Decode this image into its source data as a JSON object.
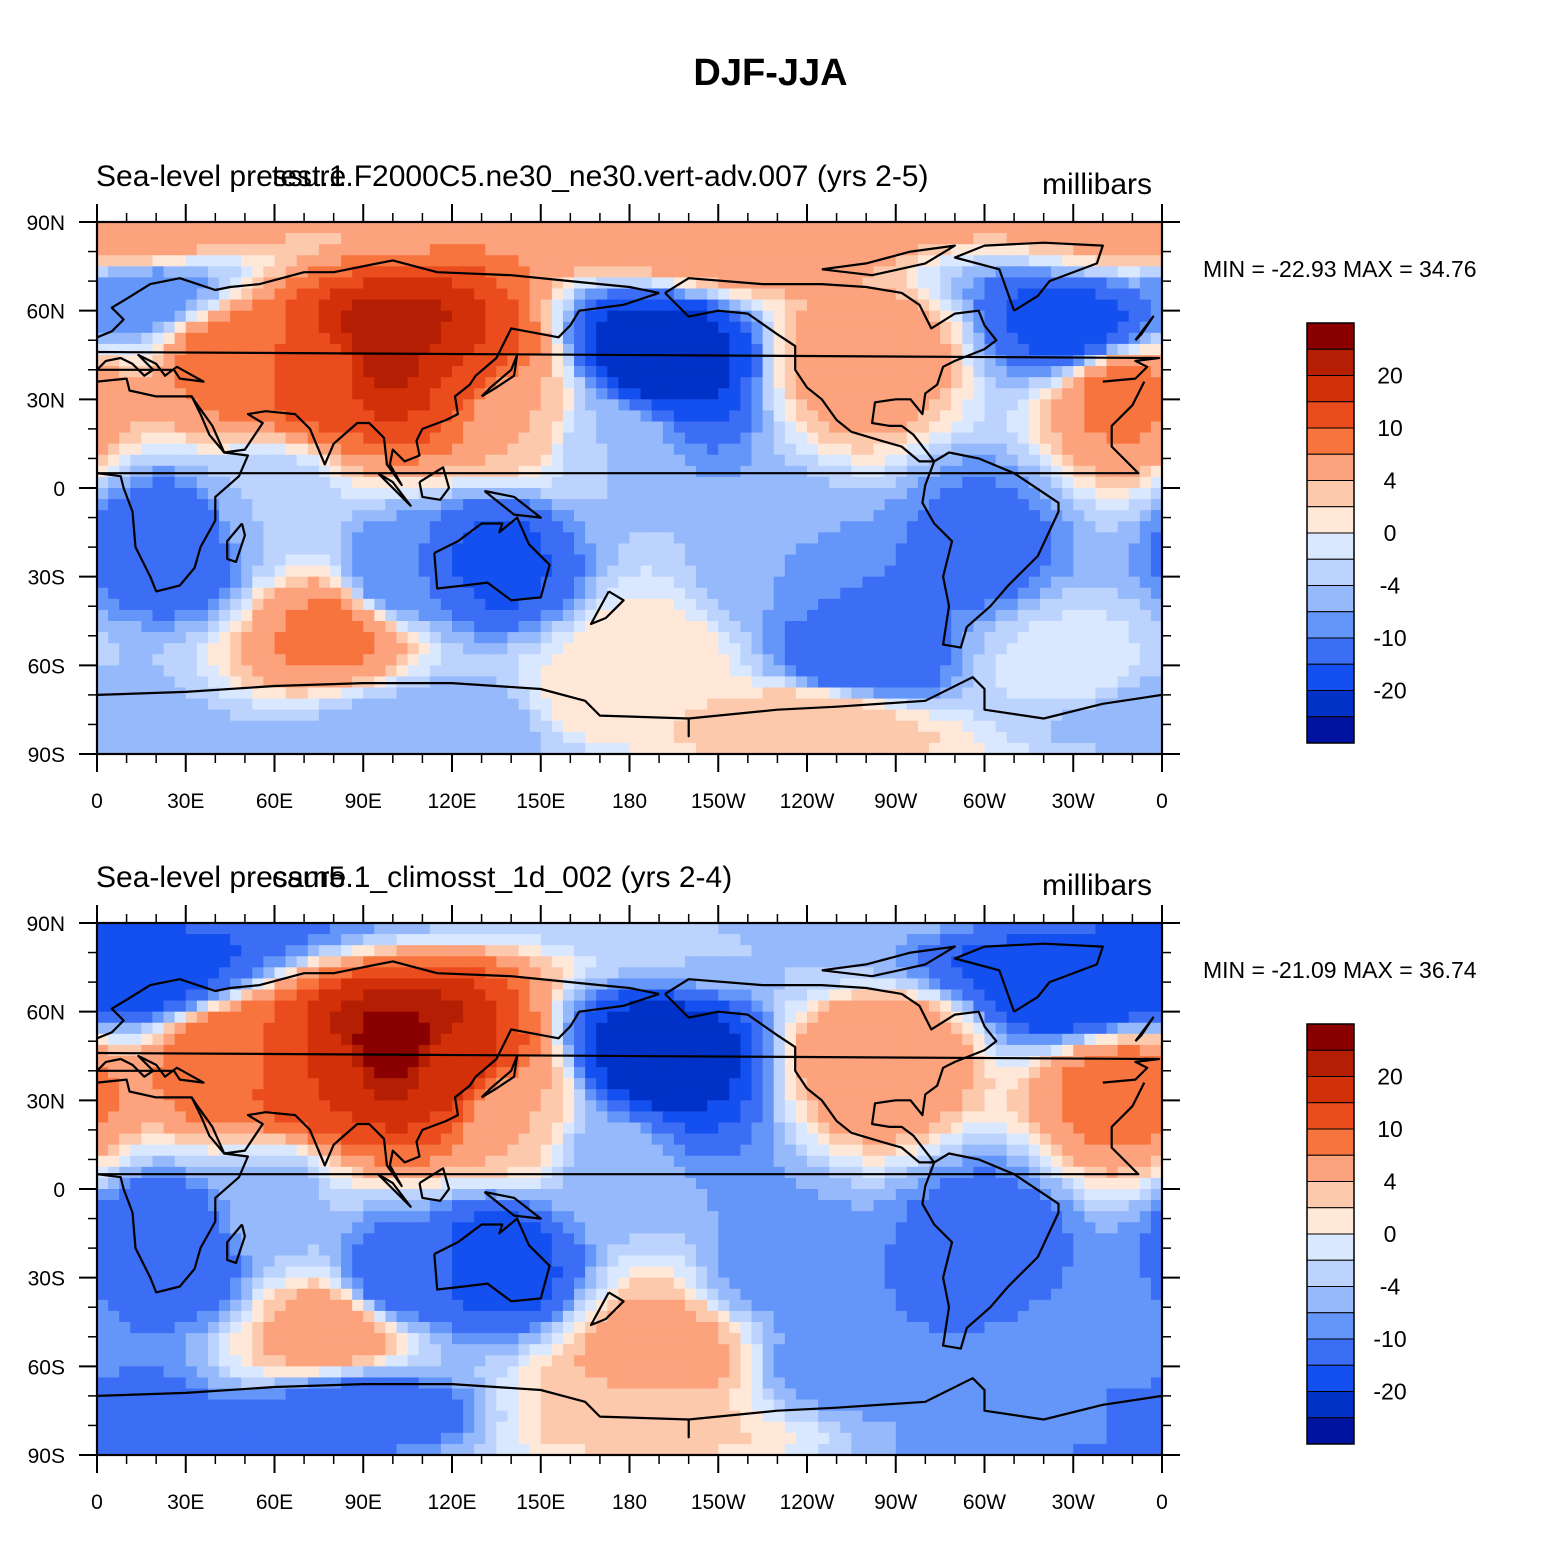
{
  "title": "DJF-JJA",
  "colors": {
    "levels": [
      "#00007d",
      "#0012a0",
      "#0032c8",
      "#1450f0",
      "#3c6ef5",
      "#6496fa",
      "#96b9fc",
      "#bcd3fd",
      "#d9e8ff",
      "#ffe8d8",
      "#fdc9ad",
      "#fca37d",
      "#f8743e",
      "#ea4c1e",
      "#d23008",
      "#b41e02",
      "#8a0000"
    ],
    "coast": "#000000"
  },
  "colorbar": {
    "labels": [
      "20",
      "10",
      "4",
      "0",
      "-4",
      "-10",
      "-20"
    ]
  },
  "axes": {
    "lat_labels": [
      "90N",
      "60N",
      "30N",
      "0",
      "30S",
      "60S",
      "90S"
    ],
    "lon_labels": [
      "0",
      "30E",
      "60E",
      "90E",
      "120E",
      "150E",
      "180",
      "150W",
      "120W",
      "90W",
      "60W",
      "30W",
      "0"
    ]
  },
  "panels": [
    {
      "title_left": "Sea-level pressure",
      "title_center": "test.1.F2000C5.ne30_ne30.vert-adv.007 (yrs 2-5)",
      "units": "millibars",
      "min_max": "MIN = -22.93 MAX =  34.76",
      "field": [
        {
          "lon": 15,
          "lat": 65,
          "v": -6
        },
        {
          "lon": 45,
          "lat": 45,
          "v": 12
        },
        {
          "lon": 75,
          "lat": 40,
          "v": 18
        },
        {
          "lon": 100,
          "lat": 48,
          "v": 30
        },
        {
          "lon": 120,
          "lat": 40,
          "v": 20
        },
        {
          "lon": 140,
          "lat": 25,
          "v": 6
        },
        {
          "lon": 190,
          "lat": 45,
          "v": -20
        },
        {
          "lon": 175,
          "lat": 15,
          "v": -2
        },
        {
          "lon": 220,
          "lat": 85,
          "v": 10
        },
        {
          "lon": 260,
          "lat": 45,
          "v": 9
        },
        {
          "lon": 330,
          "lat": 55,
          "v": -12
        },
        {
          "lon": 345,
          "lat": 32,
          "v": 11
        },
        {
          "lon": 5,
          "lat": 85,
          "v": 8
        },
        {
          "lon": 25,
          "lat": -20,
          "v": -9
        },
        {
          "lon": 135,
          "lat": -25,
          "v": -11
        },
        {
          "lon": 80,
          "lat": -48,
          "v": 11
        },
        {
          "lon": 255,
          "lat": -58,
          "v": -10
        },
        {
          "lon": 185,
          "lat": -60,
          "v": 4
        },
        {
          "lon": 300,
          "lat": -20,
          "v": -7
        },
        {
          "lon": 230,
          "lat": -25,
          "v": -4
        },
        {
          "lon": 60,
          "lat": -5,
          "v": -2
        },
        {
          "lon": 0,
          "lat": -75,
          "v": -3
        },
        {
          "lon": 120,
          "lat": -80,
          "v": -4
        },
        {
          "lon": 180,
          "lat": -75,
          "v": 4
        },
        {
          "lon": 240,
          "lat": -78,
          "v": 6
        },
        {
          "lon": 330,
          "lat": -60,
          "v": 1
        },
        {
          "lon": 100,
          "lat": -30,
          "v": -6
        }
      ]
    },
    {
      "title_left": "Sea-level pressure",
      "title_center": "cam5.1_climosst_1d_002 (yrs 2-4)",
      "units": "millibars",
      "min_max": "MIN = -21.09 MAX =  36.74",
      "field": [
        {
          "lon": 15,
          "lat": 72,
          "v": -12
        },
        {
          "lon": 45,
          "lat": 45,
          "v": 14
        },
        {
          "lon": 75,
          "lat": 40,
          "v": 20
        },
        {
          "lon": 100,
          "lat": 48,
          "v": 32
        },
        {
          "lon": 120,
          "lat": 40,
          "v": 22
        },
        {
          "lon": 140,
          "lat": 25,
          "v": 6
        },
        {
          "lon": 190,
          "lat": 45,
          "v": -20
        },
        {
          "lon": 175,
          "lat": 10,
          "v": -3
        },
        {
          "lon": 220,
          "lat": 85,
          "v": -2
        },
        {
          "lon": 265,
          "lat": 45,
          "v": 10
        },
        {
          "lon": 330,
          "lat": 68,
          "v": -14
        },
        {
          "lon": 345,
          "lat": 35,
          "v": 12
        },
        {
          "lon": 25,
          "lat": -20,
          "v": -10
        },
        {
          "lon": 135,
          "lat": -25,
          "v": -12
        },
        {
          "lon": 80,
          "lat": -48,
          "v": 9
        },
        {
          "lon": 255,
          "lat": -58,
          "v": -6
        },
        {
          "lon": 190,
          "lat": -55,
          "v": 8
        },
        {
          "lon": 300,
          "lat": -20,
          "v": -8
        },
        {
          "lon": 230,
          "lat": -25,
          "v": -5
        },
        {
          "lon": 60,
          "lat": -5,
          "v": -3
        },
        {
          "lon": 0,
          "lat": -80,
          "v": -9
        },
        {
          "lon": 90,
          "lat": -75,
          "v": -8
        },
        {
          "lon": 180,
          "lat": -78,
          "v": 5
        },
        {
          "lon": 340,
          "lat": -55,
          "v": -4
        },
        {
          "lon": 100,
          "lat": -30,
          "v": -8
        },
        {
          "lon": 330,
          "lat": -80,
          "v": -5
        }
      ]
    }
  ]
}
